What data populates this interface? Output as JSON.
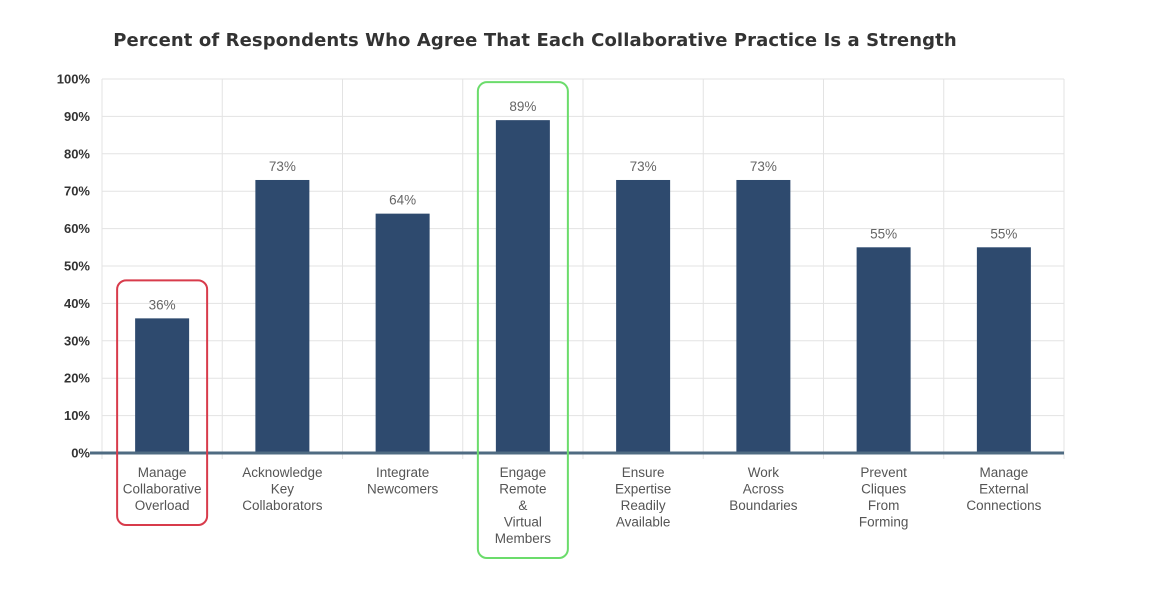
{
  "chart_data": {
    "type": "bar",
    "title": "Percent of Respondents Who Agree That Each Collaborative Practice Is a Strength",
    "xlabel": "",
    "ylabel": "",
    "ylim": [
      0,
      100
    ],
    "yticks": [
      "0%",
      "10%",
      "20%",
      "30%",
      "40%",
      "50%",
      "60%",
      "70%",
      "80%",
      "90%",
      "100%"
    ],
    "categories": [
      [
        "Manage",
        "Collaborative",
        "Overload"
      ],
      [
        "Acknowledge",
        "Key",
        "Collaborators"
      ],
      [
        "Integrate",
        "Newcomers"
      ],
      [
        "Engage",
        "Remote",
        "&",
        "Virtual",
        "Members"
      ],
      [
        "Ensure",
        "Expertise",
        "Readily",
        "Available"
      ],
      [
        "Work",
        "Across",
        "Boundaries"
      ],
      [
        "Prevent",
        "Cliques",
        "From",
        "Forming"
      ],
      [
        "Manage",
        "External",
        "Connections"
      ]
    ],
    "values": [
      36,
      73,
      64,
      89,
      73,
      73,
      55,
      55
    ],
    "data_labels": [
      "36%",
      "73%",
      "64%",
      "89%",
      "73%",
      "73%",
      "55%",
      "55%"
    ],
    "grid": true,
    "legend": "none",
    "colors": {
      "bar": "#2e4a6e",
      "baseline": "#4f6b82",
      "grid": "#e3e3e3",
      "highlight_low": "#d83b4b",
      "highlight_high": "#6bdc6b"
    },
    "highlights": [
      {
        "category_index": 0,
        "kind": "lowest",
        "color": "#d83b4b"
      },
      {
        "category_index": 3,
        "kind": "highest",
        "color": "#6bdc6b"
      }
    ]
  }
}
